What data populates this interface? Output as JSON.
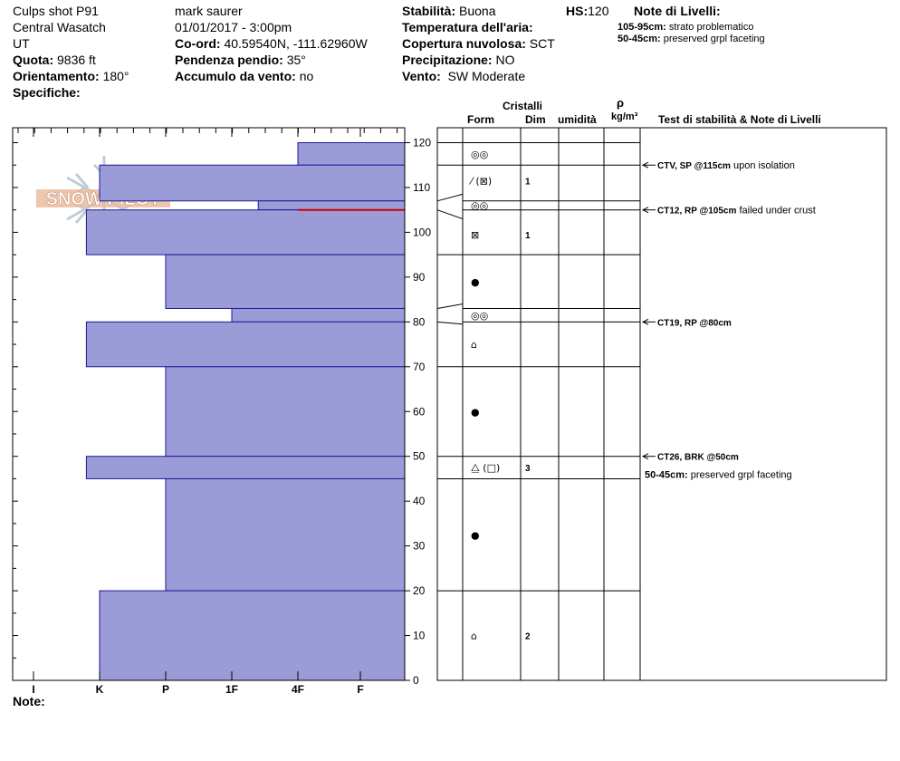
{
  "header": {
    "site": "Culps shot P91",
    "range": "Central Wasatch",
    "state": "UT",
    "elevation_label": "Quota:",
    "elevation_value": "9836 ft",
    "aspect_label": "Orientamento:",
    "aspect_value": "180°",
    "specifics_label": "Specifiche:",
    "observer": "mark saurer",
    "datetime": "01/01/2017 - 3:00pm",
    "coord_label": "Co-ord:",
    "coord_value": "40.59540N, -111.62960W",
    "slope_label": "Pendenza pendio:",
    "slope_value": "35°",
    "wind_load_label": "Accumulo da vento:",
    "wind_load_value": "no",
    "stability_label": "Stabilità:",
    "stability_value": "Buona",
    "hs_label": "HS:",
    "hs_value": "120",
    "air_temp_label": "Temperatura dell'aria:",
    "air_temp_value": "",
    "cloud_label": "Copertura nuvolosa:",
    "cloud_value": "SCT",
    "precip_label": "Precipitazione:",
    "precip_value": "NO",
    "wind_label": "Vento:",
    "wind_value": "SW Moderate"
  },
  "layer_notes": {
    "title": "Note di Livelli:",
    "items": [
      {
        "range": "105-95cm:",
        "text": "strato problematico"
      },
      {
        "range": "50-45cm:",
        "text": "preserved grpl faceting"
      }
    ]
  },
  "columns": {
    "crystals": "Cristalli",
    "form": "Form",
    "dim": "Dim",
    "moisture": "umidità",
    "density_symbol": "ρ",
    "density_unit": "kg/m³",
    "tests": "Test di stabilità & Note di Livelli"
  },
  "footer": {
    "notes_label": "Note:"
  },
  "logo_text": "SNOW PILOT",
  "colors": {
    "bar_fill": "#9b9bd8",
    "bar_stroke": "#1a1a9a",
    "weak_layer": "#cc0000"
  },
  "chart_data": {
    "type": "bar",
    "orientation": "horizontal",
    "ylim": [
      0,
      120
    ],
    "y_ticks": [
      0,
      10,
      20,
      30,
      40,
      50,
      60,
      70,
      80,
      90,
      100,
      110,
      120
    ],
    "hardness_scale": [
      "I",
      "K",
      "P",
      "1F",
      "4F",
      "F"
    ],
    "layers": [
      {
        "top": 120,
        "bottom": 115,
        "hardness": 4.0
      },
      {
        "top": 115,
        "bottom": 107,
        "hardness": 1.0
      },
      {
        "top": 107,
        "bottom": 105,
        "hardness": 3.4
      },
      {
        "top": 105,
        "bottom": 95,
        "hardness": 0.8
      },
      {
        "top": 95,
        "bottom": 83,
        "hardness": 2.0
      },
      {
        "top": 83,
        "bottom": 80,
        "hardness": 3.0
      },
      {
        "top": 80,
        "bottom": 70,
        "hardness": 0.8
      },
      {
        "top": 70,
        "bottom": 50,
        "hardness": 2.0
      },
      {
        "top": 50,
        "bottom": 45,
        "hardness": 0.8
      },
      {
        "top": 45,
        "bottom": 20,
        "hardness": 2.0
      },
      {
        "top": 20,
        "bottom": 0,
        "hardness": 1.0
      }
    ],
    "weak_layer_depth": 105,
    "grain_forms": [
      {
        "depth": 117.5,
        "symbol": "◎◎",
        "size": ""
      },
      {
        "depth": 111.5,
        "symbol": "⁄ (⊠)",
        "size": "1"
      },
      {
        "depth": 106.0,
        "symbol": "◎◎",
        "size": ""
      },
      {
        "depth": 99.5,
        "symbol": "⊠",
        "size": "1"
      },
      {
        "depth": 89.0,
        "symbol": "●",
        "size": ""
      },
      {
        "depth": 81.5,
        "symbol": "◎◎",
        "size": ""
      },
      {
        "depth": 75.0,
        "symbol": "⌂",
        "size": ""
      },
      {
        "depth": 60.0,
        "symbol": "●",
        "size": ""
      },
      {
        "depth": 47.5,
        "symbol": "⧋ (□)",
        "size": "3"
      },
      {
        "depth": 32.5,
        "symbol": "●",
        "size": ""
      },
      {
        "depth": 10.0,
        "symbol": "⌂",
        "size": "2"
      }
    ],
    "stability_tests": [
      {
        "depth": 115,
        "label": "CTV, SP @115cm",
        "note": "upon isolation"
      },
      {
        "depth": 105,
        "label": "CT12, RP @105cm",
        "note": "failed under crust"
      },
      {
        "depth": 80,
        "label": "CT19, RP @80cm",
        "note": ""
      },
      {
        "depth": 50,
        "label": "CT26, BRK @50cm",
        "note": ""
      }
    ],
    "column_notes": [
      {
        "depth": 46,
        "range": "50-45cm:",
        "text": "preserved grpl faceting"
      }
    ]
  }
}
